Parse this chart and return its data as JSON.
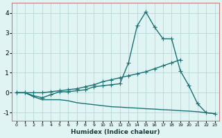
{
  "bg_color": "#e0f4f4",
  "grid_color": "#b8d8d8",
  "border_color": "#c08080",
  "line_color": "#1a7070",
  "line_width": 1.0,
  "marker": "+",
  "markersize": 4,
  "xlabel": "Humidex (Indice chaleur)",
  "xlim": [
    -0.5,
    23.5
  ],
  "ylim": [
    -1.4,
    4.5
  ],
  "xticks": [
    0,
    1,
    2,
    3,
    4,
    5,
    6,
    7,
    8,
    9,
    10,
    11,
    12,
    13,
    14,
    15,
    16,
    17,
    18,
    19,
    20,
    21,
    22,
    23
  ],
  "yticks": [
    -1,
    0,
    1,
    2,
    3,
    4
  ],
  "line1_x": [
    0,
    1,
    2,
    3,
    4,
    5,
    6,
    7,
    8,
    9,
    10,
    11,
    12,
    13,
    14,
    15,
    16,
    17,
    18,
    19,
    20,
    21,
    22,
    23
  ],
  "line1_y": [
    0.0,
    0.0,
    -0.15,
    -0.25,
    -0.1,
    0.05,
    0.05,
    0.1,
    0.15,
    0.3,
    0.35,
    0.4,
    0.45,
    1.5,
    3.35,
    4.05,
    3.3,
    2.7,
    2.7,
    1.1,
    0.35,
    -0.55,
    -1.0,
    -1.05
  ],
  "line2_x": [
    0,
    1,
    2,
    3,
    4,
    5,
    6,
    7,
    8,
    9,
    10,
    11,
    12,
    13,
    14,
    15,
    16,
    17,
    18,
    19
  ],
  "line2_y": [
    0.0,
    0.0,
    0.0,
    0.0,
    0.05,
    0.1,
    0.15,
    0.2,
    0.3,
    0.4,
    0.55,
    0.65,
    0.75,
    0.85,
    0.95,
    1.05,
    1.2,
    1.35,
    1.5,
    1.65
  ],
  "line3_x": [
    0,
    1,
    2,
    3,
    4,
    5,
    6,
    7,
    8,
    9,
    10,
    11,
    12,
    13,
    14,
    15,
    16,
    17,
    18,
    19,
    20,
    21,
    22,
    23
  ],
  "line3_y": [
    0.0,
    0.0,
    -0.2,
    -0.35,
    -0.35,
    -0.35,
    -0.4,
    -0.5,
    -0.55,
    -0.6,
    -0.65,
    -0.7,
    -0.72,
    -0.75,
    -0.77,
    -0.8,
    -0.82,
    -0.85,
    -0.87,
    -0.9,
    -0.92,
    -0.95,
    -1.0,
    -1.05
  ]
}
